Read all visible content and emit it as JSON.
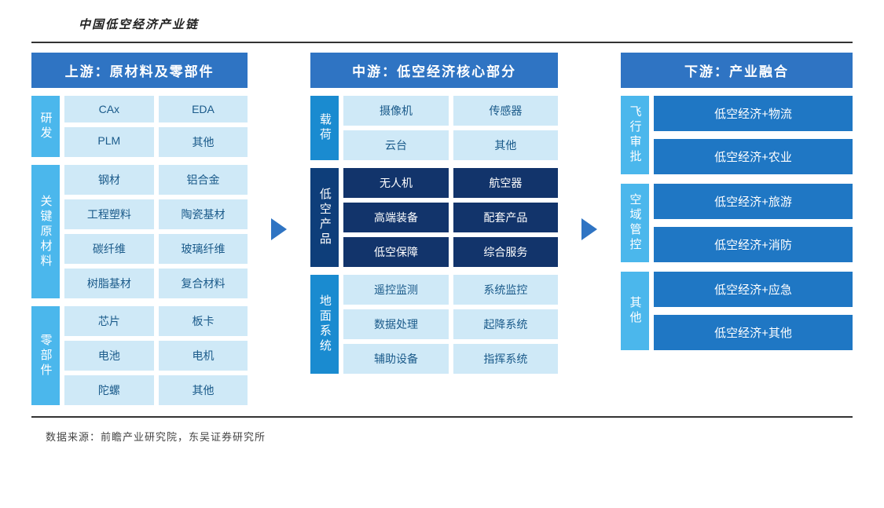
{
  "title": "中国低空经济产业链",
  "source": "数据来源：前瞻产业研究院，东吴证券研究所",
  "colors": {
    "header_bg": "#2f74c3",
    "arrow": "#2f74c3",
    "side_light": "#4bb7ec",
    "side_mid": "#1a8bd0",
    "side_dark": "#0e3e7a",
    "cell_light_bg": "#cfe9f7",
    "cell_light_text": "#1a5a8a",
    "cell_dark_bg": "#12346b",
    "cell_dark_text": "#ffffff",
    "down_item_bg": "#1f77c4",
    "title_text": "#222222"
  },
  "upstream": {
    "header": "上游：原材料及零部件",
    "sections": [
      {
        "label": "研发",
        "color_key": "side_light",
        "cells": [
          "CAx",
          "EDA",
          "PLM",
          "其他"
        ]
      },
      {
        "label": "关键原材料",
        "color_key": "side_light",
        "cells": [
          "钢材",
          "铝合金",
          "工程塑料",
          "陶瓷基材",
          "碳纤维",
          "玻璃纤维",
          "树脂基材",
          "复合材料"
        ]
      },
      {
        "label": "零部件",
        "color_key": "side_light",
        "cells": [
          "芯片",
          "板卡",
          "电池",
          "电机",
          "陀螺",
          "其他"
        ]
      }
    ]
  },
  "midstream": {
    "header": "中游：低空经济核心部分",
    "sections": [
      {
        "label": "载荷",
        "color_key": "side_mid",
        "style": "light",
        "cells": [
          "摄像机",
          "传感器",
          "云台",
          "其他"
        ]
      },
      {
        "label": "低空产品",
        "color_key": "side_dark",
        "style": "dark",
        "cells": [
          "无人机",
          "航空器",
          "高端装备",
          "配套产品",
          "低空保障",
          "综合服务"
        ]
      },
      {
        "label": "地面系统",
        "color_key": "side_mid",
        "style": "light",
        "cells": [
          "遥控监测",
          "系统监控",
          "数据处理",
          "起降系统",
          "辅助设备",
          "指挥系统"
        ]
      }
    ]
  },
  "downstream": {
    "header": "下游：产业融合",
    "sections": [
      {
        "label": "飞行审批",
        "color_key": "side_light",
        "items": [
          "低空经济+物流",
          "低空经济+农业"
        ]
      },
      {
        "label": "空域管控",
        "color_key": "side_light",
        "items": [
          "低空经济+旅游",
          "低空经济+消防"
        ]
      },
      {
        "label": "其他",
        "color_key": "side_light",
        "items": [
          "低空经济+应急",
          "低空经济+其他"
        ]
      }
    ]
  }
}
